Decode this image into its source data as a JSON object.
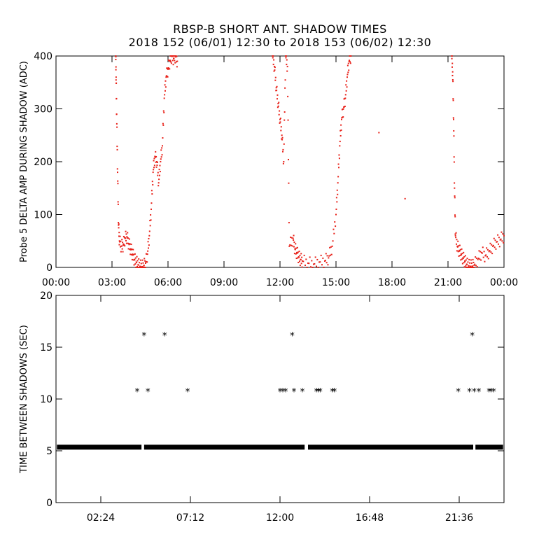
{
  "title_line1": "RBSP-B SHORT ANT. SHADOW TIMES",
  "title_line2": "2018 152 (06/01) 12:30 to 2018 153 (06/02) 12:30",
  "colors": {
    "points_top": "#e8221a",
    "points_bottom": "#000000",
    "axes": "#000000"
  },
  "chart_data": [
    {
      "type": "scatter",
      "ylabel": "Probe 5 DELTA AMP DURING SHADOW (ADC)",
      "xlabel": "",
      "xlim": [
        0,
        24
      ],
      "ylim": [
        0,
        400
      ],
      "xticks": [
        0,
        3,
        6,
        9,
        12,
        15,
        18,
        21,
        24
      ],
      "xtick_labels": [
        "00:00",
        "03:00",
        "06:00",
        "09:00",
        "12:00",
        "15:00",
        "18:00",
        "21:00",
        "00:00"
      ],
      "yticks": [
        0,
        100,
        200,
        300,
        400
      ],
      "ytick_labels": [
        "0",
        "100",
        "200",
        "300",
        "400"
      ],
      "marker": "dot",
      "series": [
        {
          "x": [
            3.2,
            3.22,
            3.25,
            3.3,
            3.35,
            3.4,
            3.5,
            3.6,
            3.7,
            3.8,
            3.9,
            4.0,
            4.1,
            4.2,
            4.3,
            4.4,
            4.5,
            4.6,
            4.7,
            4.8,
            4.9,
            5.0,
            5.1,
            5.2,
            5.3,
            5.4,
            5.5,
            5.6,
            5.7,
            5.8,
            5.9,
            6.0,
            6.1,
            6.2,
            6.3,
            6.4,
            6.5,
            11.6,
            11.7,
            11.8,
            11.9,
            12.0,
            12.1,
            12.2,
            12.3,
            12.4,
            12.5,
            12.7,
            12.8,
            12.9,
            13.0,
            13.1,
            13.2,
            13.5,
            13.8,
            14.1,
            14.4,
            14.6,
            14.8,
            15.0,
            15.1,
            15.2,
            15.3,
            15.4,
            15.5,
            15.6,
            15.7,
            15.8,
            17.3,
            18.7,
            21.2,
            21.25,
            21.3,
            21.35,
            21.4,
            21.5,
            21.6,
            21.7,
            21.8,
            21.9,
            22.0,
            22.1,
            22.2,
            22.3,
            22.4,
            22.6,
            22.8,
            23.0,
            23.2,
            23.4,
            23.6,
            23.8,
            24.0
          ],
          "y": [
            400,
            360,
            290,
            180,
            80,
            50,
            40,
            42,
            55,
            58,
            45,
            35,
            25,
            15,
            10,
            5,
            2,
            1,
            3,
            8,
            25,
            60,
            110,
            180,
            210,
            200,
            160,
            200,
            230,
            320,
            360,
            375,
            390,
            400,
            395,
            400,
            390,
            400,
            380,
            340,
            310,
            280,
            250,
            200,
            400,
            380,
            40,
            55,
            35,
            28,
            20,
            15,
            12,
            8,
            6,
            10,
            12,
            18,
            40,
            100,
            160,
            230,
            280,
            300,
            320,
            360,
            390,
            400,
            255,
            130,
            400,
            370,
            280,
            150,
            60,
            40,
            32,
            25,
            18,
            12,
            6,
            3,
            2,
            2,
            4,
            15,
            28,
            22,
            30,
            40,
            48,
            52,
            60
          ]
        }
      ]
    },
    {
      "type": "scatter",
      "ylabel": "TIME BETWEEN SHADOWS (SEC)",
      "xlabel": "",
      "xlim": [
        0,
        24
      ],
      "ylim": [
        0,
        20
      ],
      "xticks": [
        2.4,
        7.2,
        12,
        16.8,
        21.6
      ],
      "xtick_labels": [
        "02:24",
        "07:12",
        "12:00",
        "16:48",
        "21:36"
      ],
      "yticks": [
        0,
        5,
        10,
        15,
        20
      ],
      "ytick_labels": [
        "0",
        "5",
        "10",
        "15",
        "20"
      ],
      "marker": "asterisk",
      "baseline": {
        "y": 5.35,
        "x_start": 0.05,
        "x_end": 23.95
      },
      "gaps_in_baseline": [
        [
          4.58,
          4.72
        ],
        [
          13.32,
          13.5
        ],
        [
          22.35,
          22.47
        ]
      ],
      "series": [
        {
          "x": [
            4.35,
            4.72,
            4.92,
            5.82,
            7.05,
            12.0,
            12.15,
            12.3,
            12.65,
            12.75,
            13.2,
            13.95,
            14.05,
            14.15,
            14.8,
            14.92,
            21.55,
            22.15,
            22.3,
            22.4,
            22.65,
            23.2,
            23.3,
            23.45
          ],
          "y": [
            10.7,
            16.1,
            10.7,
            16.1,
            10.7,
            10.7,
            10.7,
            10.7,
            16.1,
            10.7,
            10.7,
            10.7,
            10.7,
            10.7,
            10.7,
            10.7,
            10.7,
            10.7,
            16.1,
            10.7,
            10.7,
            10.7,
            10.7,
            10.7
          ]
        }
      ]
    }
  ]
}
